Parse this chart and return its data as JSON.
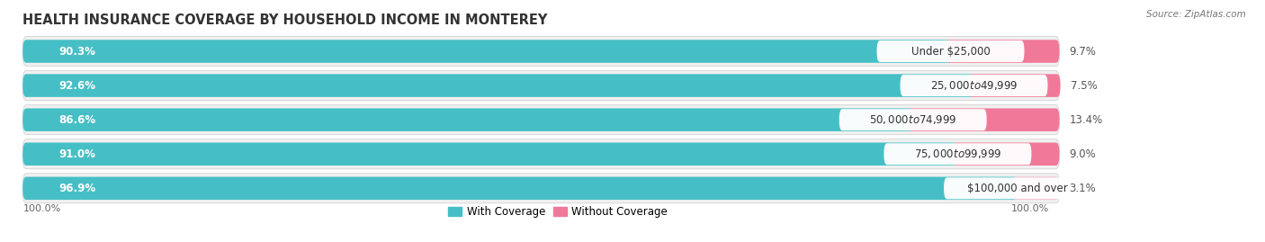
{
  "title": "HEALTH INSURANCE COVERAGE BY HOUSEHOLD INCOME IN MONTEREY",
  "source": "Source: ZipAtlas.com",
  "categories": [
    "Under $25,000",
    "$25,000 to $49,999",
    "$50,000 to $74,999",
    "$75,000 to $99,999",
    "$100,000 and over"
  ],
  "with_coverage": [
    90.3,
    92.6,
    86.6,
    91.0,
    96.9
  ],
  "without_coverage": [
    9.7,
    7.5,
    13.4,
    9.0,
    3.1
  ],
  "with_coverage_color": "#45BFC5",
  "without_coverage_color": "#F07898",
  "without_coverage_color_last": "#F0A8C0",
  "row_bg_color": "#F0F0F0",
  "row_border_color": "#DDDDDD",
  "title_fontsize": 10.5,
  "label_fontsize": 8.5,
  "tick_fontsize": 8.0,
  "legend_fontsize": 8.5,
  "source_fontsize": 7.5,
  "cat_label_fontsize": 8.5,
  "figure_bg": "#FFFFFF",
  "total_width": 100,
  "bar_xlim_max": 115
}
